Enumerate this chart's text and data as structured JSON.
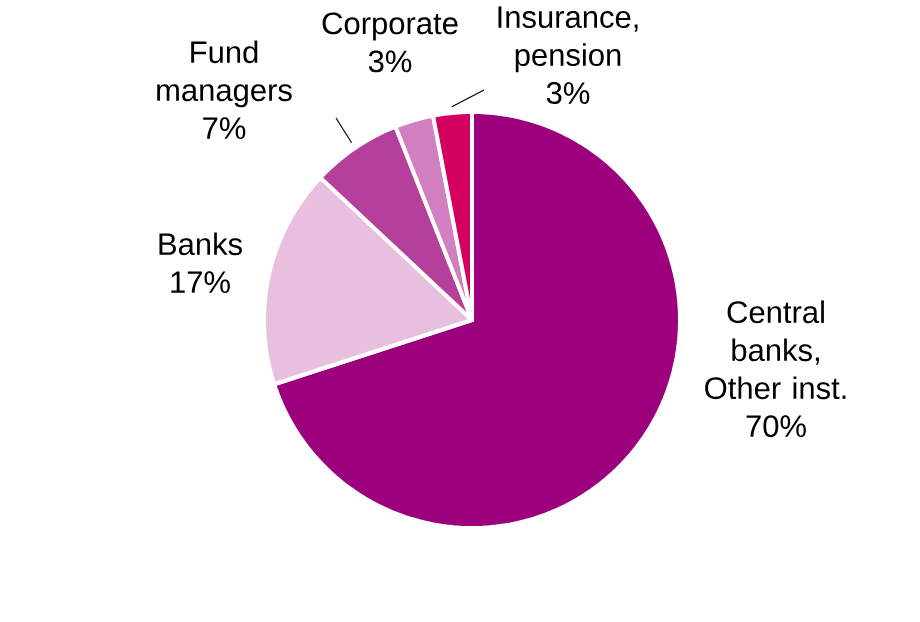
{
  "chart_data": {
    "type": "pie",
    "categories": [
      "Central banks, Other inst.",
      "Banks",
      "Fund managers",
      "Corporate",
      "Insurance, pension"
    ],
    "values": [
      70,
      17,
      7,
      3,
      3
    ],
    "value_labels": [
      "70%",
      "17%",
      "7%",
      "3%",
      "3%"
    ],
    "colors": [
      "#9c007c",
      "#e8bfdf",
      "#b4409b",
      "#d17fc0",
      "#d4005f"
    ]
  }
}
